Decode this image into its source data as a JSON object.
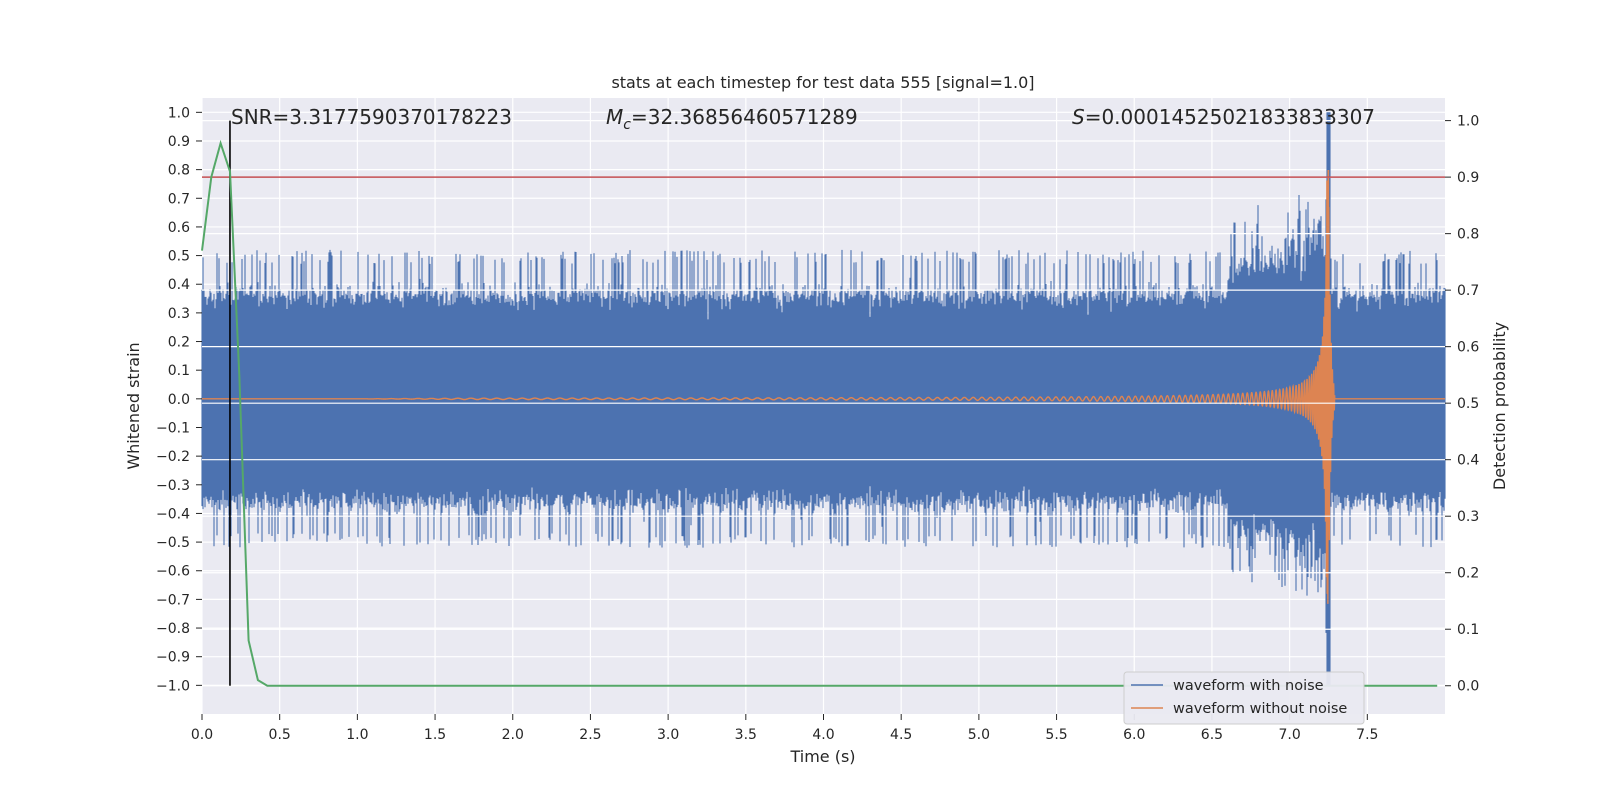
{
  "chart_data": {
    "type": "line",
    "title": "stats at each timestep for test data 555 [signal=1.0]",
    "xlabel": "Time (s)",
    "ylabel_left": "Whitened strain",
    "ylabel_right": "Detection probability",
    "xlim": [
      0.0,
      8.0
    ],
    "ylim_left": [
      -1.1,
      1.05
    ],
    "ylim_right": [
      -0.05,
      1.04
    ],
    "x_ticks": [
      0.0,
      0.5,
      1.0,
      1.5,
      2.0,
      2.5,
      3.0,
      3.5,
      4.0,
      4.5,
      5.0,
      5.5,
      6.0,
      6.5,
      7.0,
      7.5
    ],
    "x_tick_labels": [
      "0.0",
      "0.5",
      "1.0",
      "1.5",
      "2.0",
      "2.5",
      "3.0",
      "3.5",
      "4.0",
      "4.5",
      "5.0",
      "5.5",
      "6.0",
      "6.5",
      "7.0",
      "7.5"
    ],
    "y_left_ticks": [
      1.0,
      0.9,
      0.8,
      0.7,
      0.6,
      0.5,
      0.4,
      0.3,
      0.2,
      0.1,
      0.0,
      -0.1,
      -0.2,
      -0.3,
      -0.4,
      -0.5,
      -0.6,
      -0.7,
      -0.8,
      -0.9,
      -1.0
    ],
    "y_left_tick_labels": [
      "1.0",
      "0.9",
      "0.8",
      "0.7",
      "0.6",
      "0.5",
      "0.4",
      "0.3",
      "0.2",
      "0.1",
      "0.0",
      "−0.1",
      "−0.2",
      "−0.3",
      "−0.4",
      "−0.5",
      "−0.6",
      "−0.7",
      "−0.8",
      "−0.9",
      "−1.0"
    ],
    "y_right_ticks": [
      1.0,
      0.9,
      0.8,
      0.7,
      0.6,
      0.5,
      0.4,
      0.3,
      0.2,
      0.1,
      0.0
    ],
    "y_right_tick_labels": [
      "1.0",
      "0.9",
      "0.8",
      "0.7",
      "0.6",
      "0.5",
      "0.4",
      "0.3",
      "0.2",
      "0.1",
      "0.0"
    ],
    "annotations": [
      {
        "text": "SNR=3.3177590370178223",
        "x": 0.2,
        "y_left": 1.0
      },
      {
        "text": "Mc=32.36856460571289",
        "x": 2.6,
        "y_left": 1.0
      },
      {
        "text": "S=0.00014525021833833307",
        "x": 5.6,
        "y_left": 1.0
      }
    ],
    "annotation_parts": {
      "mc_symbol": "M",
      "mc_sub": "c",
      "mc_value": "=32.36856460571289",
      "s_symbol": "S",
      "s_value": "=0.00014525021833833307"
    },
    "threshold_right": 0.9,
    "detection_time": 0.18,
    "series": [
      {
        "name": "waveform with noise",
        "axis": "left",
        "color": "#4c72b0",
        "noise_amplitude": 0.5,
        "peak_time": 7.25,
        "peak_max": 1.0,
        "peak_min": -1.0
      },
      {
        "name": "waveform without noise",
        "axis": "left",
        "color": "#dd8452",
        "merger_time": 7.25,
        "peak_amplitude": 0.8
      },
      {
        "name": "Detection probability",
        "axis": "right",
        "color": "#55a868",
        "x": [
          0.0,
          0.06,
          0.12,
          0.18,
          0.24,
          0.3,
          0.36,
          0.42,
          8.0
        ],
        "y": [
          0.77,
          0.9,
          0.96,
          0.91,
          0.55,
          0.08,
          0.01,
          0.0,
          0.0
        ]
      }
    ],
    "threshold_color": "#c44e52",
    "detection_line_color": "#000000",
    "legend": {
      "placement": "lower-right",
      "entries": [
        "waveform with noise",
        "waveform without noise"
      ]
    },
    "grid": true
  }
}
